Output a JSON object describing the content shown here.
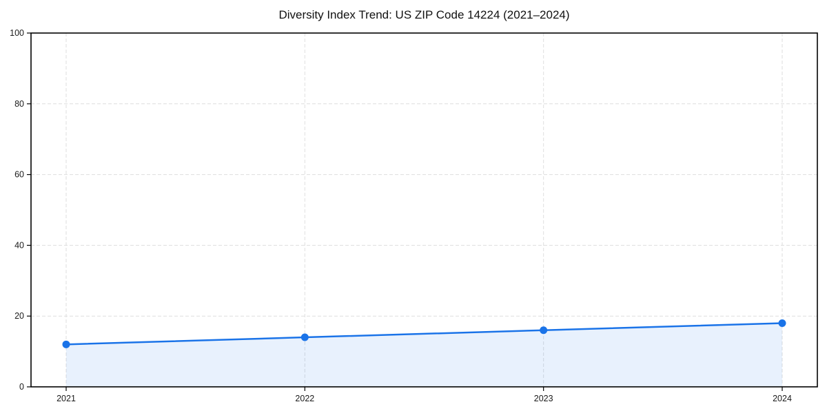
{
  "chart_data": {
    "type": "line",
    "title": "Diversity Index Trend: US ZIP Code 14224 (2021–2024)",
    "x": [
      2021,
      2022,
      2023,
      2024
    ],
    "xtick_labels": [
      "2021",
      "2022",
      "2023",
      "2024"
    ],
    "series": [
      {
        "name": "Diversity Index",
        "values": [
          12,
          14,
          16,
          18
        ]
      }
    ],
    "ylim": [
      0,
      100
    ],
    "yticks": [
      0,
      20,
      40,
      60,
      80,
      100
    ],
    "xlabel": "",
    "ylabel": "",
    "grid": true,
    "grid_style": "dashed",
    "legend_position": "none",
    "line_color": "#1a73e8",
    "marker": "circle",
    "area_fill": true,
    "area_fill_color": "#1a73e8",
    "area_fill_opacity": 0.1,
    "axis_color": "#000000",
    "grid_color": "#dedede",
    "background_color": "#ffffff"
  }
}
